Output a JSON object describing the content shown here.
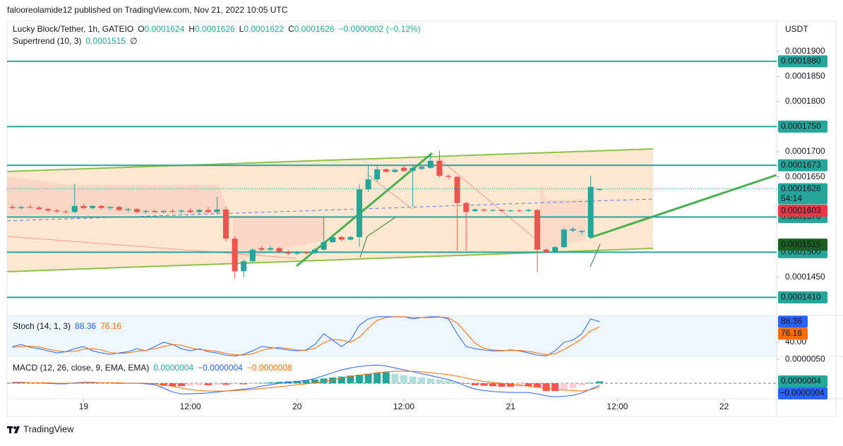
{
  "header": {
    "publisher": "falooreolamide12 published on TradingView.com, Nov 21, 2022 10:05 UTC",
    "symbol": "Lucky Block/Tether, 1h, GATEIO",
    "ohlc_keys": [
      "O",
      "H",
      "L",
      "C"
    ],
    "change": "−0.0000002 (−0.12%)",
    "supertrend_title": "Supertrend (10, 3)",
    "supertrend_flag": "∅"
  },
  "chart_data": [
    {
      "type": "candlestick",
      "currency": "USDT",
      "x": [
        -8,
        -7,
        -6,
        -5,
        -4,
        -3,
        -2,
        -1,
        0,
        1,
        2,
        3,
        4,
        5,
        6,
        7,
        8,
        9,
        10,
        11,
        12,
        13,
        14,
        15,
        16,
        17,
        18,
        19,
        20,
        21,
        22,
        23,
        24,
        25,
        26,
        27,
        28,
        29,
        30,
        31,
        32,
        33,
        34,
        35,
        36,
        37,
        38,
        39,
        40,
        41,
        42,
        43,
        44,
        45,
        46,
        47,
        48,
        49,
        50,
        51,
        52,
        53,
        54,
        55,
        56,
        57,
        58
      ],
      "open": [
        0.000159,
        0.0001588,
        0.000159,
        0.0001589,
        0.0001586,
        0.0001583,
        0.0001581,
        0.000158,
        0.0001592,
        0.0001588,
        0.0001592,
        0.0001588,
        0.000159,
        0.0001584,
        0.0001586,
        0.000158,
        0.0001582,
        0.000158,
        0.0001582,
        0.0001581,
        0.0001583,
        0.000158,
        0.0001584,
        0.000158,
        0.0001585,
        0.0001527,
        0.0001462,
        0.0001482,
        0.0001508,
        0.0001505,
        0.0001508,
        0.00015,
        0.0001497,
        0.00015,
        0.0001498,
        0.0001505,
        0.000152,
        0.000153,
        0.0001525,
        0.000153,
        0.0001625,
        0.0001645,
        0.0001665,
        0.000166,
        0.0001668,
        0.0001662,
        0.0001666,
        0.0001668,
        0.0001682,
        0.0001652,
        0.000165,
        0.0001598,
        0.0001582,
        0.0001585,
        0.0001583,
        0.0001584,
        0.0001582,
        0.0001583,
        0.0001582,
        0.0001584,
        0.0001505,
        0.00015,
        0.000151,
        0.0001543,
        0.000154,
        0.000153,
        0.0001624
      ],
      "high": [
        0.0001594,
        0.0001592,
        0.0001595,
        0.0001592,
        0.0001588,
        0.0001586,
        0.0001584,
        0.0001636,
        0.0001596,
        0.0001594,
        0.0001594,
        0.0001592,
        0.0001592,
        0.0001588,
        0.0001588,
        0.0001584,
        0.0001585,
        0.0001584,
        0.0001586,
        0.0001585,
        0.0001588,
        0.0001586,
        0.000159,
        0.000161,
        0.000159,
        0.0001532,
        0.0001486,
        0.0001508,
        0.0001512,
        0.0001512,
        0.000151,
        0.0001504,
        0.0001503,
        0.0001502,
        0.0001508,
        0.000157,
        0.0001534,
        0.0001533,
        0.0001533,
        0.0001635,
        0.0001675,
        0.0001673,
        0.0001667,
        0.0001666,
        0.0001673,
        0.0001675,
        0.0001672,
        0.0001697,
        0.0001702,
        0.0001655,
        0.0001652,
        0.00016,
        0.0001588,
        0.0001587,
        0.0001586,
        0.0001586,
        0.0001585,
        0.0001585,
        0.0001586,
        0.0001586,
        0.0001508,
        0.0001512,
        0.0001548,
        0.000155,
        0.0001545,
        0.0001652,
        0.0001626
      ],
      "low": [
        0.0001586,
        0.0001585,
        0.0001587,
        0.0001584,
        0.000158,
        0.0001578,
        0.0001577,
        0.0001578,
        0.0001586,
        0.0001585,
        0.0001586,
        0.0001584,
        0.0001582,
        0.000158,
        0.0001578,
        0.0001577,
        0.0001578,
        0.0001577,
        0.0001578,
        0.0001577,
        0.0001578,
        0.0001576,
        0.0001578,
        0.0001576,
        0.0001522,
        0.0001448,
        0.000145,
        0.0001478,
        0.0001502,
        0.00015,
        0.0001498,
        0.0001494,
        0.0001494,
        0.0001495,
        0.0001496,
        0.0001503,
        0.0001518,
        0.0001522,
        0.0001523,
        0.000151,
        0.000162,
        0.000164,
        0.0001658,
        0.0001658,
        0.000166,
        0.000159,
        0.0001664,
        0.0001666,
        0.0001648,
        0.0001645,
        0.0001503,
        0.0001503,
        0.000158,
        0.000158,
        0.0001581,
        0.000158,
        0.000158,
        0.000158,
        0.000158,
        0.000146,
        0.0001498,
        0.0001498,
        0.0001508,
        0.000154,
        0.0001535,
        0.0001528,
        0.0001622
      ],
      "close": [
        0.0001588,
        0.000159,
        0.0001589,
        0.0001586,
        0.0001583,
        0.0001581,
        0.000158,
        0.0001592,
        0.0001588,
        0.0001592,
        0.0001588,
        0.000159,
        0.0001584,
        0.0001586,
        0.000158,
        0.0001582,
        0.000158,
        0.0001582,
        0.0001581,
        0.0001583,
        0.000158,
        0.0001584,
        0.000158,
        0.0001585,
        0.0001527,
        0.0001462,
        0.0001482,
        0.0001505,
        0.0001505,
        0.0001508,
        0.00015,
        0.0001497,
        0.00015,
        0.0001498,
        0.0001505,
        0.000152,
        0.000153,
        0.0001525,
        0.000153,
        0.0001625,
        0.0001645,
        0.0001665,
        0.000166,
        0.0001664,
        0.0001662,
        0.0001668,
        0.000167,
        0.0001682,
        0.0001652,
        0.000165,
        0.0001598,
        0.000158,
        0.0001585,
        0.0001583,
        0.0001584,
        0.0001582,
        0.0001583,
        0.0001582,
        0.0001584,
        0.0001505,
        0.00015,
        0.000151,
        0.0001545,
        0.0001546,
        0.0001542,
        0.000163,
        0.0001626
      ],
      "up_color": "#26a69a",
      "down_color": "#ef5350",
      "xlim": [
        -8.6,
        77.9
      ],
      "xticks": [
        {
          "value": 0,
          "label": "19"
        },
        {
          "value": 12,
          "label": "12:00"
        },
        {
          "value": 24,
          "label": "20"
        },
        {
          "value": 36,
          "label": "12:00"
        },
        {
          "value": 48,
          "label": "21"
        },
        {
          "value": 60,
          "label": "12:00"
        },
        {
          "value": 72,
          "label": "22"
        }
      ],
      "ylim": [
        0.0001374,
        0.000196
      ],
      "yticks": [
        {
          "value": 0.00019,
          "label": "0.0001900"
        },
        {
          "value": 0.000185,
          "label": "0.0001850"
        },
        {
          "value": 0.00018,
          "label": "0.0001800"
        },
        {
          "value": 0.00017,
          "label": "0.0001700"
        },
        {
          "value": 0.000165,
          "label": "0.0001650"
        },
        {
          "value": 0.000145,
          "label": "0.0001450"
        }
      ],
      "levels": [
        {
          "value": 0.000188,
          "label": "0.0001880"
        },
        {
          "value": 0.000175,
          "label": "0.0001750"
        },
        0.0001673,
        {
          "value": 0.000157,
          "label": "0.0001570"
        },
        {
          "value": 0.00015,
          "label": "0.0001500"
        },
        {
          "value": 0.000141,
          "label": "0.0001410"
        }
      ],
      "level_color": "#26a69a",
      "supertrend": 0.0001515,
      "supertrend_color": "#1b5e20",
      "countdown": "54:14",
      "price_labels": [
        0.0001603
      ],
      "price_label_color": "#f23645"
    },
    {
      "type": "line",
      "title": "Stoch (14, 1, 3)",
      "ylim": [
        7,
        103
      ],
      "yticks": [
        {
          "value": 40,
          "label": "40.00"
        }
      ],
      "series": [
        {
          "color": "#2962ff",
          "values": [
            30,
            35,
            28,
            25,
            20,
            15,
            18,
            25,
            30,
            20,
            15,
            12,
            15,
            18,
            25,
            20,
            30,
            40,
            35,
            25,
            20,
            25,
            18,
            15,
            10,
            8,
            12,
            20,
            30,
            28,
            25,
            22,
            20,
            22,
            35,
            60,
            45,
            30,
            45,
            80,
            95,
            100,
            100,
            100,
            100,
            95,
            98,
            100,
            100,
            95,
            60,
            30,
            25,
            22,
            20,
            20,
            22,
            20,
            15,
            10,
            8,
            20,
            40,
            45,
            60,
            95,
            88.36
          ]
        },
        {
          "color": "#ff6d00",
          "values": [
            28,
            30,
            31,
            29,
            24,
            20,
            18,
            19,
            24,
            25,
            22,
            16,
            14,
            15,
            19,
            21,
            25,
            30,
            35,
            33,
            27,
            23,
            21,
            19,
            14,
            11,
            10,
            13,
            21,
            26,
            28,
            25,
            22,
            21,
            26,
            39,
            47,
            45,
            40,
            52,
            73,
            92,
            98,
            100,
            100,
            98,
            98,
            98,
            99,
            98,
            85,
            62,
            38,
            26,
            22,
            21,
            21,
            21,
            19,
            15,
            11,
            13,
            23,
            35,
            48,
            67,
            76.16
          ]
        }
      ]
    },
    {
      "type": "macd",
      "title": "MACD (12, 26, close, 9, EMA, EMA)",
      "ylim": [
        -3.2e-06,
        5.6e-06
      ],
      "yticks": [
        {
          "value": 5e-06,
          "label": "0.0000050"
        }
      ],
      "histogram": {
        "colors": [
          "#26a69a",
          "#b2dfdb",
          "#ffcdd2",
          "#ff5252"
        ],
        "values": [
          1e-07,
          1e-07,
          0,
          0,
          0,
          -1e-07,
          -1e-07,
          1e-07,
          1e-07,
          1e-07,
          0,
          0,
          0,
          0,
          0,
          -1e-07,
          -2e-07,
          -5e-07,
          -6e-07,
          -6e-07,
          -5e-07,
          -4e-07,
          -4e-07,
          -3e-07,
          -3e-07,
          -2e-07,
          -2e-07,
          -1e-07,
          1e-07,
          2e-07,
          3e-07,
          4e-07,
          5e-07,
          6e-07,
          8e-07,
          1e-06,
          1.2e-06,
          1.4e-06,
          1.6e-06,
          1.8e-06,
          2e-06,
          2.2e-06,
          2.3e-06,
          2e-06,
          1.7e-06,
          1.4e-06,
          1.2e-06,
          1e-06,
          8e-07,
          6e-07,
          3e-07,
          -1e-07,
          -4e-07,
          -5e-07,
          -6e-07,
          -7e-07,
          -7e-07,
          -6e-07,
          -6e-07,
          -8e-07,
          -1.6e-06,
          -1.6e-06,
          -1.3e-06,
          -1e-06,
          -4e-07,
          1e-07,
          4e-07
        ],
        "last_label": "0.0000004"
      },
      "series": [
        {
          "color": "#2962ff",
          "last_label": "−0.0000004",
          "values": [
            2e-07,
            2e-07,
            1e-07,
            1e-07,
            0,
            -1e-07,
            -1e-07,
            1e-07,
            2e-07,
            2e-07,
            1e-07,
            1e-07,
            0,
            0,
            0,
            -1e-07,
            -3e-07,
            -1e-06,
            -1.8e-06,
            -2.2e-06,
            -2.2e-06,
            -2.1e-06,
            -2e-06,
            -1.8e-06,
            -1.6e-06,
            -1.4e-06,
            -1.2e-06,
            -1e-06,
            -6e-07,
            -3e-07,
            0,
            2e-07,
            4e-07,
            6e-07,
            1e-06,
            1.6e-06,
            2.2e-06,
            2.8e-06,
            3.2e-06,
            3.5e-06,
            3.7e-06,
            3.8e-06,
            3.6e-06,
            3.2e-06,
            2.8e-06,
            2.4e-06,
            2e-06,
            1.6e-06,
            1.2e-06,
            8e-07,
            2e-07,
            -6e-07,
            -1.2e-06,
            -1.5e-06,
            -1.7e-06,
            -1.8e-06,
            -1.9e-06,
            -1.9e-06,
            -1.9e-06,
            -2.2e-06,
            -2.6e-06,
            -2.8e-06,
            -2.7e-06,
            -2.5e-06,
            -2e-06,
            -1.2e-06,
            -4e-07
          ]
        },
        {
          "color": "#ff6d00",
          "last_label": "−0.0000008",
          "values": [
            1e-07,
            1e-07,
            1e-07,
            1e-07,
            1e-07,
            0,
            0,
            0,
            1e-07,
            1e-07,
            1e-07,
            1e-07,
            1e-07,
            0,
            0,
            0,
            -1e-07,
            -3e-07,
            -6e-07,
            -1e-06,
            -1.3e-06,
            -1.5e-06,
            -1.6e-06,
            -1.6e-06,
            -1.6e-06,
            -1.5e-06,
            -1.4e-06,
            -1.3e-06,
            -1.1e-06,
            -9e-07,
            -7e-07,
            -5e-07,
            -3e-07,
            -1e-07,
            1e-07,
            4e-07,
            7e-07,
            1.1e-06,
            1.4e-06,
            1.7e-06,
            1.9e-06,
            2.2e-06,
            2.4e-06,
            2.5e-06,
            2.5e-06,
            2.5e-06,
            2.4e-06,
            2.2e-06,
            2e-06,
            1.8e-06,
            1.5e-06,
            1.1e-06,
            7e-07,
            4e-07,
            2e-07,
            0,
            -2e-07,
            -4e-07,
            -6e-07,
            -8e-07,
            -1e-06,
            -1.2e-06,
            -1.4e-06,
            -1.5e-06,
            -1.6e-06,
            -1.3e-06,
            -8e-07
          ]
        }
      ]
    }
  ],
  "footer": {
    "brand": "TradingView"
  }
}
